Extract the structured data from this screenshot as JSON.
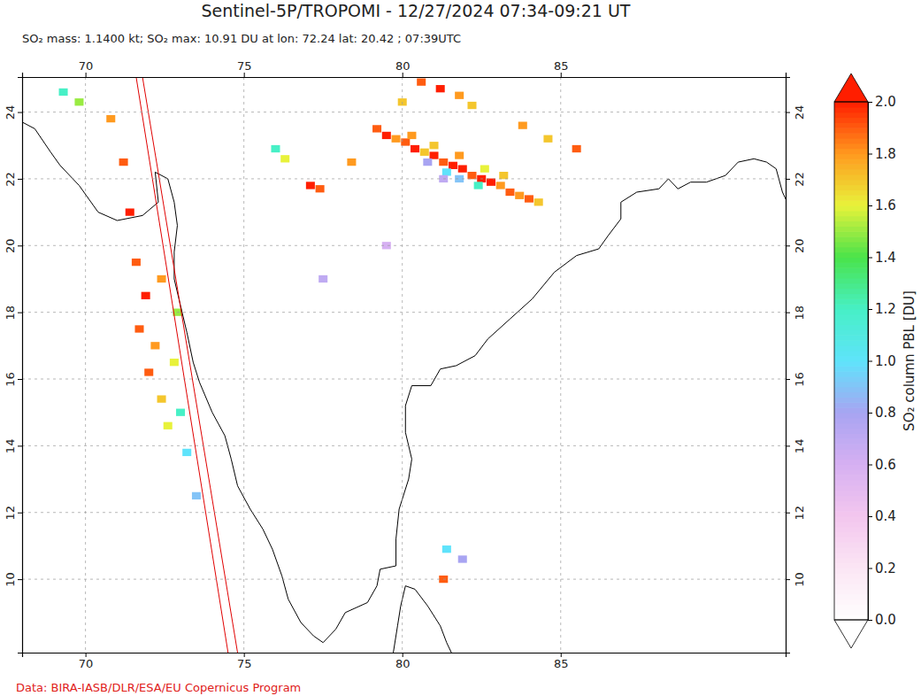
{
  "chart_data": {
    "type": "map",
    "title": "Sentinel-5P/TROPOMI - 12/27/2024 07:34-09:21 UT",
    "subtitle": "SO₂ mass: 1.1400 kt; SO₂ max: 10.91 DU at lon: 72.24 lat: 20.42 ; 07:39UTC",
    "credit": "Data: BIRA-IASB/DLR/ESA/EU Copernicus Program",
    "xlim": [
      68,
      92.1
    ],
    "ylim": [
      7.8,
      25.05
    ],
    "xticks": [
      70,
      75,
      80,
      85
    ],
    "yticks": [
      10,
      12,
      14,
      16,
      18,
      20,
      22,
      24
    ],
    "grid": true,
    "colorbar": {
      "label": "SO₂ column PBL [DU]",
      "range": [
        0,
        2
      ],
      "ticks": [
        {
          "value": 0,
          "label": "0.0"
        },
        {
          "value": 0.2,
          "label": "0.2"
        },
        {
          "value": 0.4,
          "label": "0.4"
        },
        {
          "value": 0.6,
          "label": "0.6"
        },
        {
          "value": 0.8,
          "label": "0.8"
        },
        {
          "value": 1,
          "label": "1.0"
        },
        {
          "value": 1.2,
          "label": "1.2"
        },
        {
          "value": 1.4,
          "label": "1.4"
        },
        {
          "value": 1.6,
          "label": "1.6"
        },
        {
          "value": 1.8,
          "label": "1.8"
        },
        {
          "value": 2,
          "label": "2.0"
        }
      ]
    },
    "cells": [
      {
        "lon": 79.2,
        "lat": 23.5,
        "value": 1.9
      },
      {
        "lon": 79.5,
        "lat": 23.3,
        "value": 2.0
      },
      {
        "lon": 79.8,
        "lat": 23.2,
        "value": 1.8
      },
      {
        "lon": 80.1,
        "lat": 23.1,
        "value": 1.9
      },
      {
        "lon": 80.4,
        "lat": 22.9,
        "value": 2.0
      },
      {
        "lon": 80.7,
        "lat": 22.8,
        "value": 1.7
      },
      {
        "lon": 81.0,
        "lat": 22.7,
        "value": 2.0
      },
      {
        "lon": 81.3,
        "lat": 22.5,
        "value": 1.9
      },
      {
        "lon": 81.6,
        "lat": 22.4,
        "value": 2.0
      },
      {
        "lon": 81.9,
        "lat": 22.3,
        "value": 2.0
      },
      {
        "lon": 82.2,
        "lat": 22.1,
        "value": 1.9
      },
      {
        "lon": 82.5,
        "lat": 22.0,
        "value": 2.0
      },
      {
        "lon": 82.8,
        "lat": 21.9,
        "value": 2.0
      },
      {
        "lon": 83.1,
        "lat": 21.8,
        "value": 1.8
      },
      {
        "lon": 83.4,
        "lat": 21.6,
        "value": 1.9
      },
      {
        "lon": 83.7,
        "lat": 21.5,
        "value": 1.8
      },
      {
        "lon": 84.0,
        "lat": 21.4,
        "value": 1.9
      },
      {
        "lon": 84.3,
        "lat": 21.3,
        "value": 1.7
      },
      {
        "lon": 80.3,
        "lat": 23.3,
        "value": 1.8
      },
      {
        "lon": 81.0,
        "lat": 23.0,
        "value": 1.7
      },
      {
        "lon": 81.8,
        "lat": 22.7,
        "value": 1.8
      },
      {
        "lon": 82.6,
        "lat": 22.3,
        "value": 1.6
      },
      {
        "lon": 83.2,
        "lat": 22.1,
        "value": 1.7
      },
      {
        "lon": 81.4,
        "lat": 22.2,
        "value": 1.0
      },
      {
        "lon": 81.8,
        "lat": 22.0,
        "value": 0.9
      },
      {
        "lon": 82.4,
        "lat": 21.8,
        "value": 1.2
      },
      {
        "lon": 80.8,
        "lat": 22.5,
        "value": 0.8
      },
      {
        "lon": 81.3,
        "lat": 22.0,
        "value": 0.7
      },
      {
        "lon": 80.6,
        "lat": 24.9,
        "value": 1.9
      },
      {
        "lon": 81.2,
        "lat": 24.7,
        "value": 2.0
      },
      {
        "lon": 81.8,
        "lat": 24.5,
        "value": 1.8
      },
      {
        "lon": 82.2,
        "lat": 24.2,
        "value": 1.7
      },
      {
        "lon": 80.0,
        "lat": 24.3,
        "value": 1.7
      },
      {
        "lon": 77.1,
        "lat": 21.8,
        "value": 2.0
      },
      {
        "lon": 77.4,
        "lat": 21.7,
        "value": 1.9
      },
      {
        "lon": 78.4,
        "lat": 22.5,
        "value": 1.8
      },
      {
        "lon": 76.3,
        "lat": 22.6,
        "value": 1.6
      },
      {
        "lon": 76.0,
        "lat": 22.9,
        "value": 1.2
      },
      {
        "lon": 83.8,
        "lat": 23.6,
        "value": 1.8
      },
      {
        "lon": 84.6,
        "lat": 23.2,
        "value": 1.7
      },
      {
        "lon": 85.5,
        "lat": 22.9,
        "value": 1.9
      },
      {
        "lon": 81.4,
        "lat": 10.9,
        "value": 1.0
      },
      {
        "lon": 81.9,
        "lat": 10.6,
        "value": 0.8
      },
      {
        "lon": 81.3,
        "lat": 10.0,
        "value": 1.9
      },
      {
        "lon": 79.5,
        "lat": 20.0,
        "value": 0.6
      },
      {
        "lon": 77.5,
        "lat": 19.0,
        "value": 0.7
      },
      {
        "lon": 71.6,
        "lat": 19.5,
        "value": 1.9
      },
      {
        "lon": 71.9,
        "lat": 18.5,
        "value": 2.0
      },
      {
        "lon": 71.7,
        "lat": 17.5,
        "value": 1.9
      },
      {
        "lon": 72.2,
        "lat": 17.0,
        "value": 1.8
      },
      {
        "lon": 72.0,
        "lat": 16.2,
        "value": 1.9
      },
      {
        "lon": 72.4,
        "lat": 15.4,
        "value": 1.7
      },
      {
        "lon": 72.6,
        "lat": 14.6,
        "value": 1.6
      },
      {
        "lon": 71.4,
        "lat": 21.0,
        "value": 2.0
      },
      {
        "lon": 71.2,
        "lat": 22.5,
        "value": 1.9
      },
      {
        "lon": 70.8,
        "lat": 23.8,
        "value": 1.8
      },
      {
        "lon": 72.9,
        "lat": 18.0,
        "value": 1.5
      },
      {
        "lon": 72.4,
        "lat": 19.0,
        "value": 1.8
      },
      {
        "lon": 72.8,
        "lat": 16.5,
        "value": 1.6
      },
      {
        "lon": 73.0,
        "lat": 15.0,
        "value": 1.2
      },
      {
        "lon": 73.2,
        "lat": 13.8,
        "value": 1.0
      },
      {
        "lon": 73.5,
        "lat": 12.5,
        "value": 0.9
      },
      {
        "lon": 69.8,
        "lat": 24.3,
        "value": 1.5
      },
      {
        "lon": 69.3,
        "lat": 24.6,
        "value": 1.2
      }
    ]
  }
}
